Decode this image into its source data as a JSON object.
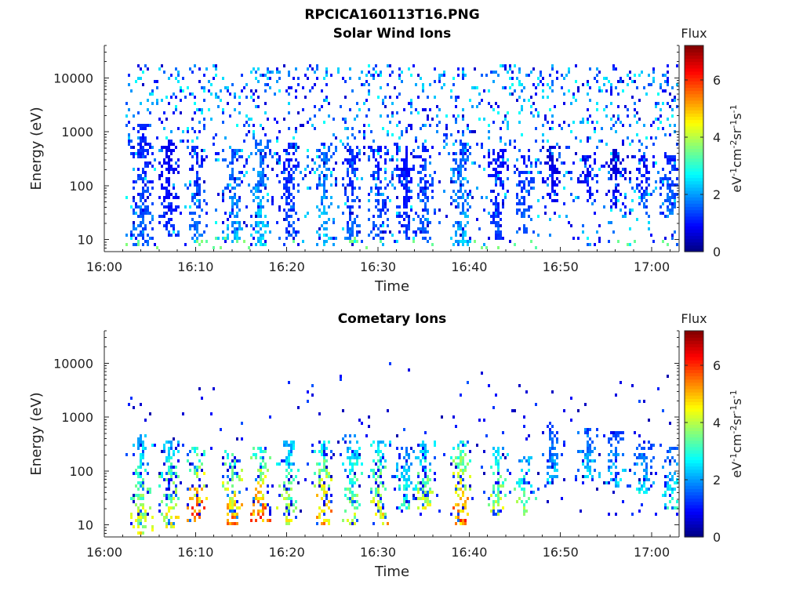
{
  "figure_title": "RPCICA160113T16.PNG",
  "chart_data": [
    {
      "type": "heatmap",
      "title": "Solar Wind Ions",
      "xlabel": "Time",
      "ylabel": "Energy (eV)",
      "y_scale": "log",
      "x_range": [
        "16:00",
        "17:03"
      ],
      "y_range": [
        6,
        40000
      ],
      "x_ticks": [
        "16:00",
        "16:10",
        "16:20",
        "16:30",
        "16:40",
        "16:50",
        "17:00"
      ],
      "y_ticks": [
        "10",
        "100",
        "1000",
        "10000"
      ],
      "colorbar": {
        "title": "Flux",
        "label": "eV-1cm-2sr-1s-1",
        "ticks": [
          "0",
          "2",
          "4",
          "6"
        ],
        "range": [
          0,
          7.2
        ],
        "colormap": "jet"
      },
      "bursts": [
        {
          "t": "16:04",
          "e_lo": 8,
          "e_hi": 1500,
          "flux": 2.2
        },
        {
          "t": "16:07",
          "e_lo": 10,
          "e_hi": 800,
          "flux": 1.6
        },
        {
          "t": "16:10",
          "e_lo": 10,
          "e_hi": 600,
          "flux": 2.4
        },
        {
          "t": "16:14",
          "e_lo": 8,
          "e_hi": 500,
          "flux": 3.0
        },
        {
          "t": "16:17",
          "e_lo": 8,
          "e_hi": 800,
          "flux": 3.3
        },
        {
          "t": "16:20",
          "e_lo": 10,
          "e_hi": 700,
          "flux": 2.0
        },
        {
          "t": "16:24",
          "e_lo": 8,
          "e_hi": 700,
          "flux": 3.2
        },
        {
          "t": "16:27",
          "e_lo": 10,
          "e_hi": 600,
          "flux": 2.2
        },
        {
          "t": "16:30",
          "e_lo": 10,
          "e_hi": 600,
          "flux": 2.0
        },
        {
          "t": "16:33",
          "e_lo": 10,
          "e_hi": 500,
          "flux": 1.8
        },
        {
          "t": "16:35",
          "e_lo": 10,
          "e_hi": 600,
          "flux": 2.2
        },
        {
          "t": "16:39",
          "e_lo": 8,
          "e_hi": 700,
          "flux": 3.0
        },
        {
          "t": "16:43",
          "e_lo": 10,
          "e_hi": 500,
          "flux": 1.8
        },
        {
          "t": "16:46",
          "e_lo": 12,
          "e_hi": 400,
          "flux": 2.2
        },
        {
          "t": "16:49",
          "e_lo": 50,
          "e_hi": 600,
          "flux": 1.2
        },
        {
          "t": "16:53",
          "e_lo": 50,
          "e_hi": 400,
          "flux": 1.5
        },
        {
          "t": "16:56",
          "e_lo": 40,
          "e_hi": 500,
          "flux": 1.2
        },
        {
          "t": "16:59",
          "e_lo": 40,
          "e_hi": 400,
          "flux": 2.0
        },
        {
          "t": "17:02",
          "e_lo": 30,
          "e_hi": 400,
          "flux": 2.3
        }
      ],
      "background": {
        "e_lo": 8,
        "e_hi": 20000,
        "flux_low": 0.5,
        "flux_high": 2.8
      }
    },
    {
      "type": "heatmap",
      "title": "Cometary Ions",
      "xlabel": "Time",
      "ylabel": "Energy (eV)",
      "y_scale": "log",
      "x_range": [
        "16:00",
        "17:03"
      ],
      "y_range": [
        6,
        40000
      ],
      "x_ticks": [
        "16:00",
        "16:10",
        "16:20",
        "16:30",
        "16:40",
        "16:50",
        "17:00"
      ],
      "y_ticks": [
        "10",
        "100",
        "1000",
        "10000"
      ],
      "colorbar": {
        "title": "Flux",
        "label": "eV-1cm-2sr-1s-1",
        "ticks": [
          "0",
          "2",
          "4",
          "6"
        ],
        "range": [
          0,
          7.2
        ],
        "colormap": "jet"
      },
      "bursts": [
        {
          "t": "16:04",
          "e_lo": 7,
          "e_hi": 500,
          "flux": 4.6
        },
        {
          "t": "16:07",
          "e_lo": 9,
          "e_hi": 400,
          "flux": 4.8
        },
        {
          "t": "16:10",
          "e_lo": 12,
          "e_hi": 300,
          "flux": 6.2
        },
        {
          "t": "16:14",
          "e_lo": 10,
          "e_hi": 250,
          "flux": 5.9
        },
        {
          "t": "16:17",
          "e_lo": 12,
          "e_hi": 300,
          "flux": 6.1
        },
        {
          "t": "16:20",
          "e_lo": 10,
          "e_hi": 400,
          "flux": 4.6
        },
        {
          "t": "16:24",
          "e_lo": 10,
          "e_hi": 400,
          "flux": 5.6
        },
        {
          "t": "16:27",
          "e_lo": 10,
          "e_hi": 500,
          "flux": 4.4
        },
        {
          "t": "16:30",
          "e_lo": 10,
          "e_hi": 400,
          "flux": 5.0
        },
        {
          "t": "16:33",
          "e_lo": 20,
          "e_hi": 300,
          "flux": 3.4
        },
        {
          "t": "16:35",
          "e_lo": 20,
          "e_hi": 400,
          "flux": 4.6
        },
        {
          "t": "16:39",
          "e_lo": 10,
          "e_hi": 400,
          "flux": 5.9
        },
        {
          "t": "16:43",
          "e_lo": 15,
          "e_hi": 300,
          "flux": 4.6
        },
        {
          "t": "16:46",
          "e_lo": 15,
          "e_hi": 200,
          "flux": 4.2
        },
        {
          "t": "16:49",
          "e_lo": 60,
          "e_hi": 800,
          "flux": 2.6
        },
        {
          "t": "16:53",
          "e_lo": 80,
          "e_hi": 700,
          "flux": 2.7
        },
        {
          "t": "16:56",
          "e_lo": 50,
          "e_hi": 600,
          "flux": 2.8
        },
        {
          "t": "16:59",
          "e_lo": 40,
          "e_hi": 400,
          "flux": 2.8
        },
        {
          "t": "17:02",
          "e_lo": 20,
          "e_hi": 300,
          "flux": 3.2
        }
      ],
      "background": {
        "e_lo": 15,
        "e_hi": 12000,
        "flux_low": 0.3,
        "flux_high": 1.5
      }
    }
  ]
}
